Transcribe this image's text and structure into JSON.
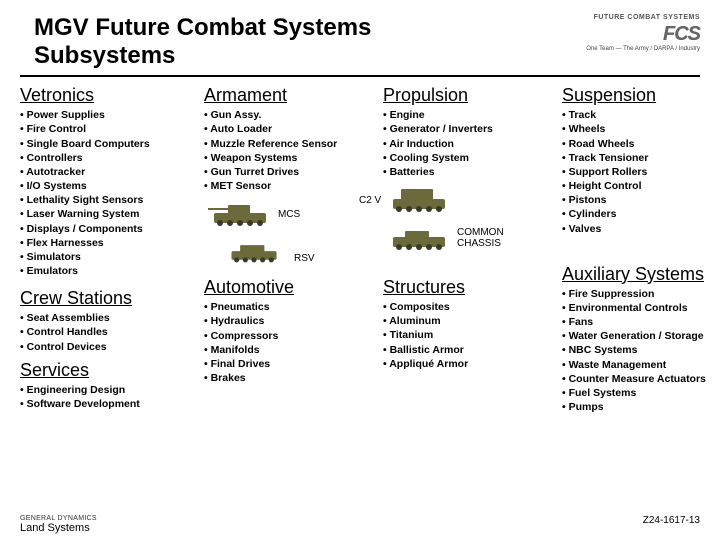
{
  "header": {
    "title_l1": "MGV Future Combat Systems",
    "title_l2": "Subsystems",
    "logo_top": "FUTURE COMBAT SYSTEMS",
    "logo_fcs": "FCS",
    "logo_sub": "One Team — The Army / DARPA / Industry"
  },
  "columns": {
    "vetronics": {
      "head": "Vetronics",
      "items": [
        "Power Supplies",
        "Fire Control",
        "Single Board Computers",
        "Controllers",
        "Autotracker",
        "I/O Systems",
        "Lethality Sight Sensors",
        "Laser Warning System",
        "Displays / Components",
        "Flex Harnesses",
        "Simulators",
        "Emulators"
      ]
    },
    "armament": {
      "head": "Armament",
      "items": [
        "Gun Assy.",
        "Auto Loader",
        "Muzzle Reference Sensor",
        "Weapon Systems",
        "Gun Turret Drives",
        "MET Sensor"
      ]
    },
    "propulsion": {
      "head": "Propulsion",
      "items": [
        "Engine",
        "Generator / Inverters",
        "Air Induction",
        "Cooling System",
        "Batteries"
      ]
    },
    "suspension": {
      "head": "Suspension",
      "items": [
        "Track",
        "Wheels",
        "Road Wheels",
        "Track Tensioner",
        "Support Rollers",
        "Height Control",
        "Pistons",
        "Cylinders",
        "Valves"
      ]
    },
    "crew": {
      "head": "Crew Stations",
      "items": [
        "Seat Assemblies",
        "Control Handles",
        "Control Devices"
      ]
    },
    "automotive": {
      "head": "Automotive",
      "items": [
        "Pneumatics",
        "Hydraulics",
        "Compressors",
        "Manifolds",
        "Final Drives",
        "Brakes"
      ]
    },
    "structures": {
      "head": "Structures",
      "items": [
        "Composites",
        "Aluminum",
        "Titanium",
        "Ballistic Armor",
        "Appliqué Armor"
      ]
    },
    "aux": {
      "head": "Auxiliary Systems",
      "items": [
        "Fire Suppression",
        "Environmental Controls",
        "Fans",
        "Water Generation / Storage",
        "NBC Systems",
        "Waste Management",
        "Counter Measure Actuators",
        "Fuel Systems",
        "Pumps"
      ]
    },
    "services": {
      "head": "Services",
      "items": [
        "Engineering Design",
        "Software Development"
      ]
    }
  },
  "vehicles": {
    "mcs": "MCS",
    "c2v": "C2 V",
    "rsv": "RSV",
    "common": "COMMON\nCHASSIS",
    "tank_color": "#6a6a3a",
    "wheel_color": "#3a3a2a"
  },
  "footer": {
    "company_small": "GENERAL DYNAMICS",
    "company": "Land Systems",
    "code": "Z24-1617-13"
  }
}
